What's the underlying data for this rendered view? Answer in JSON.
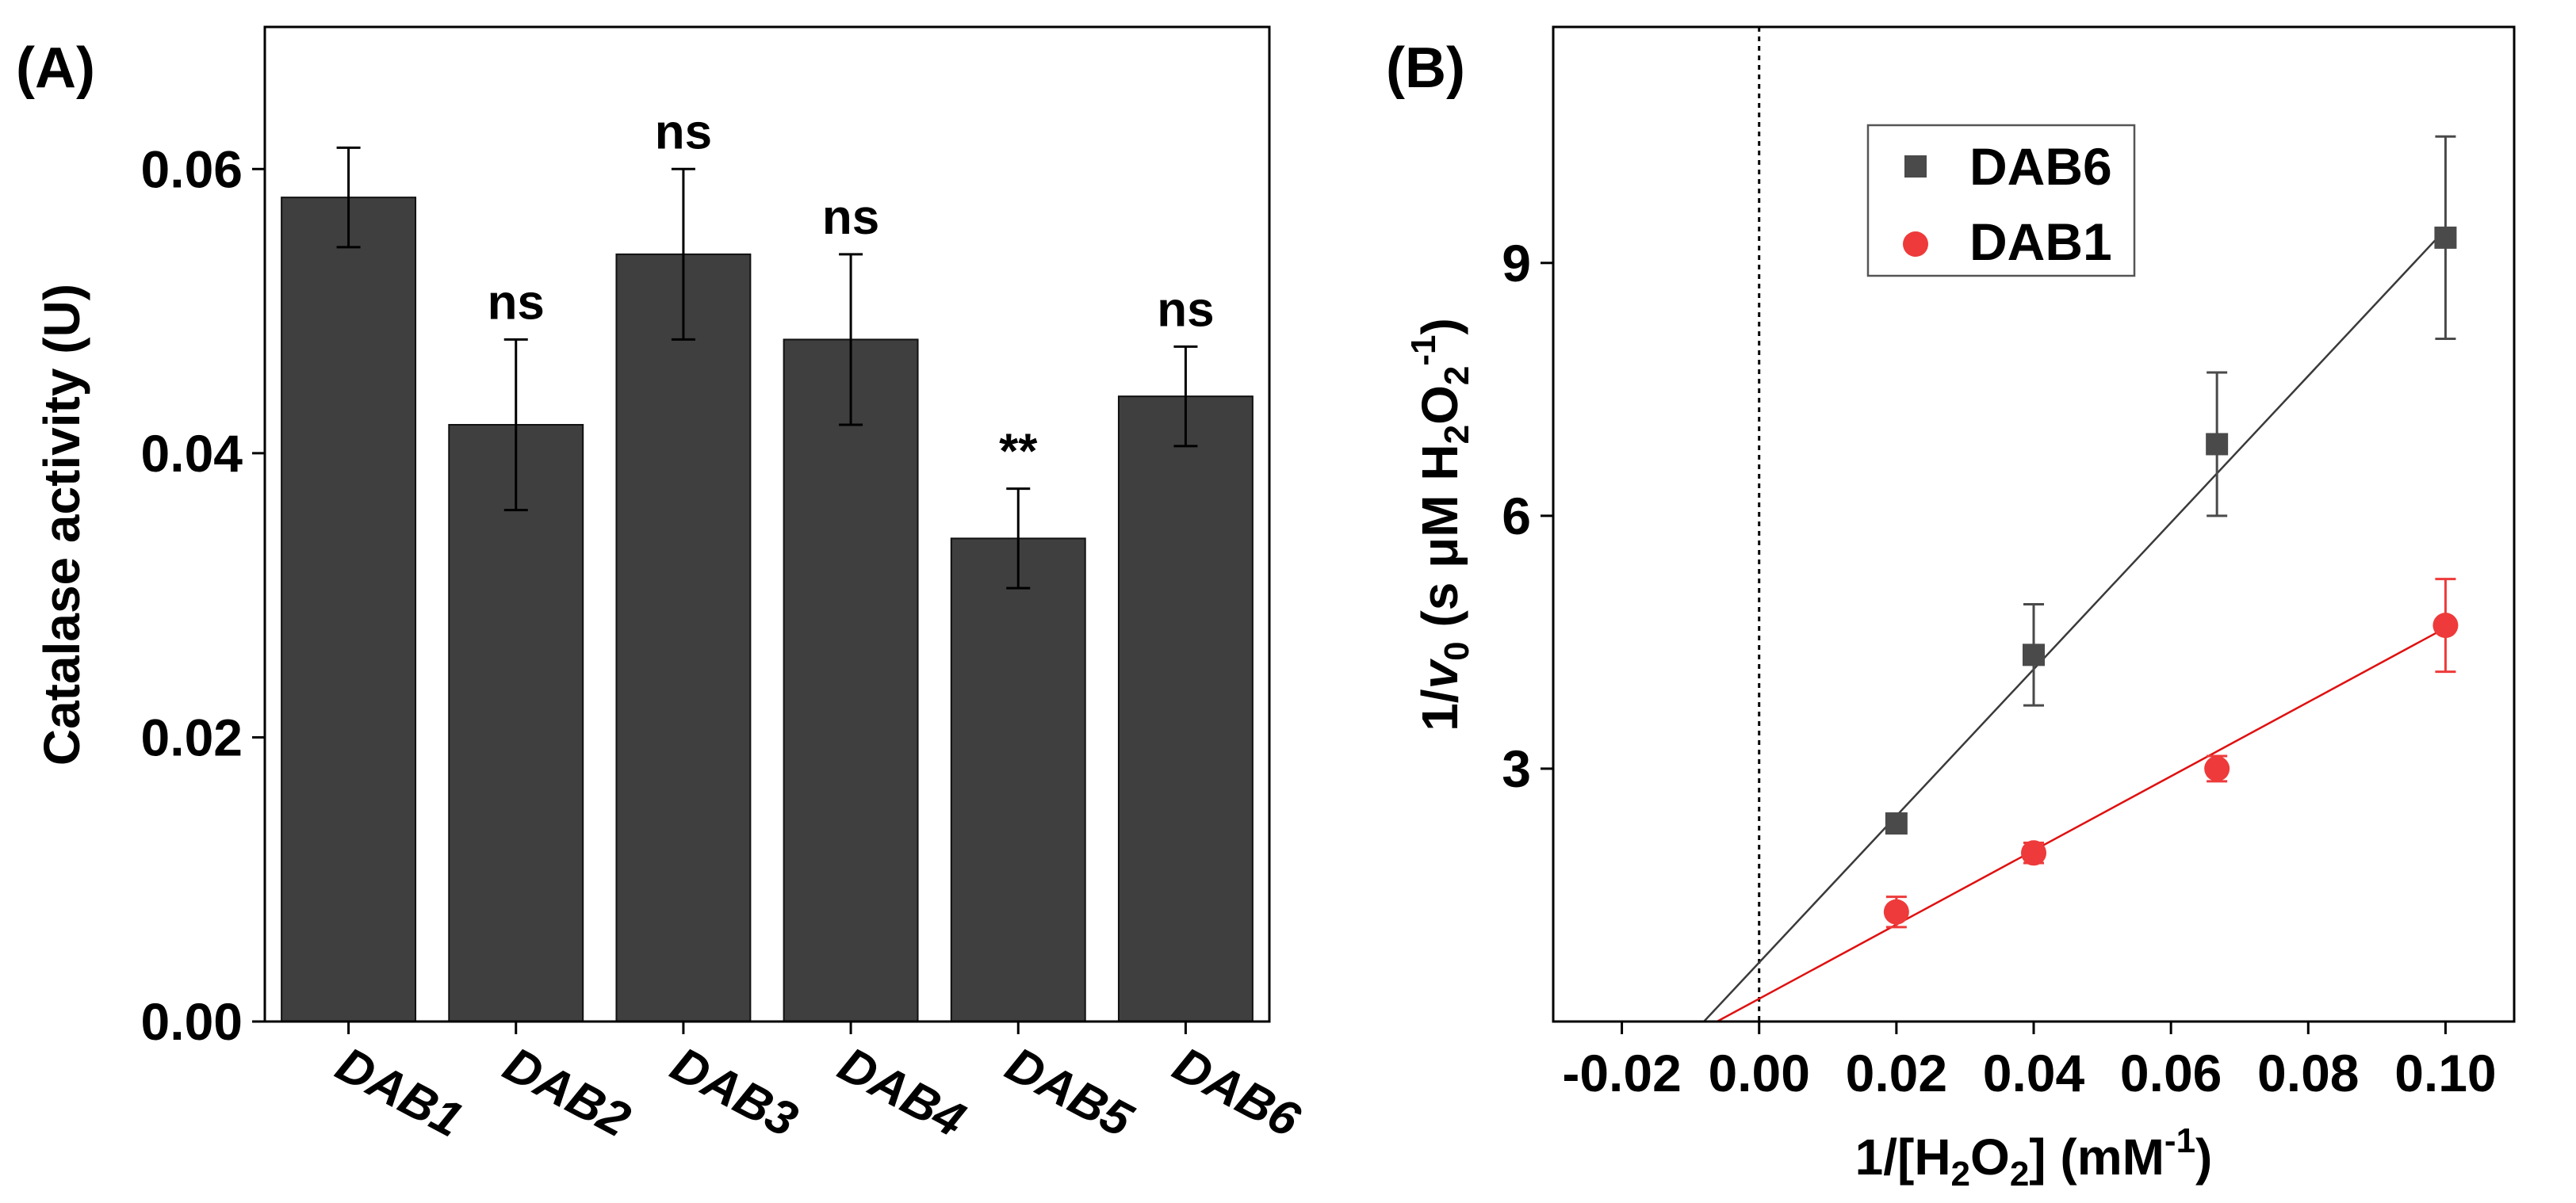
{
  "panels": {
    "a": {
      "label": "(A)"
    },
    "b": {
      "label": "(B)"
    }
  },
  "chart_data": [
    {
      "type": "bar",
      "title": "",
      "xlabel": "",
      "ylabel": "Catalase activity (U)",
      "ylim": [
        0,
        0.07
      ],
      "yticks": [
        0.0,
        0.02,
        0.04,
        0.06
      ],
      "ytick_labels": [
        "0.00",
        "0.02",
        "0.04",
        "0.06"
      ],
      "categories": [
        "DAB1",
        "DAB2",
        "DAB3",
        "DAB4",
        "DAB5",
        "DAB6"
      ],
      "values": [
        0.058,
        0.042,
        0.054,
        0.048,
        0.034,
        0.044
      ],
      "errors": [
        0.0035,
        0.006,
        0.006,
        0.006,
        0.0035,
        0.0035
      ],
      "annotations": [
        "",
        "ns",
        "ns",
        "ns",
        "**",
        "ns"
      ],
      "bar_color": "#3f3f3f"
    },
    {
      "type": "scatter",
      "title": "",
      "xlabel": "1/[H2O2] (mM-1)",
      "ylabel": "1/v0 (s μM H2O2-1)",
      "xlim": [
        -0.03,
        0.11
      ],
      "ylim": [
        0,
        11.8
      ],
      "xticks": [
        -0.02,
        0.0,
        0.02,
        0.04,
        0.06,
        0.08,
        0.1
      ],
      "xtick_labels": [
        "-0.02",
        "0.00",
        "0.02",
        "0.04",
        "0.06",
        "0.08",
        "0.10"
      ],
      "yticks": [
        3,
        6,
        9
      ],
      "ytick_labels": [
        "3",
        "6",
        "9"
      ],
      "vline_x": 0,
      "series": [
        {
          "name": "DAB6",
          "marker": "square",
          "color": "#4a4a4a",
          "line_color": "#3a3a3a",
          "x": [
            0.02,
            0.04,
            0.0667,
            0.1
          ],
          "y": [
            2.35,
            4.35,
            6.85,
            9.3
          ],
          "yerr": [
            0.1,
            0.6,
            0.85,
            1.2
          ],
          "fit": {
            "slope": 87.0,
            "intercept": 0.7
          }
        },
        {
          "name": "DAB1",
          "marker": "circle",
          "color": "#ee3a3a",
          "line_color": "#e01010",
          "x": [
            0.02,
            0.04,
            0.0667,
            0.1
          ],
          "y": [
            1.3,
            2.0,
            3.0,
            4.7
          ],
          "yerr": [
            0.18,
            0.12,
            0.15,
            0.55
          ],
          "fit": {
            "slope": 44.0,
            "intercept": 0.27
          }
        }
      ],
      "legend": [
        "DAB6",
        "DAB1"
      ],
      "legend_position": "top-left"
    }
  ]
}
